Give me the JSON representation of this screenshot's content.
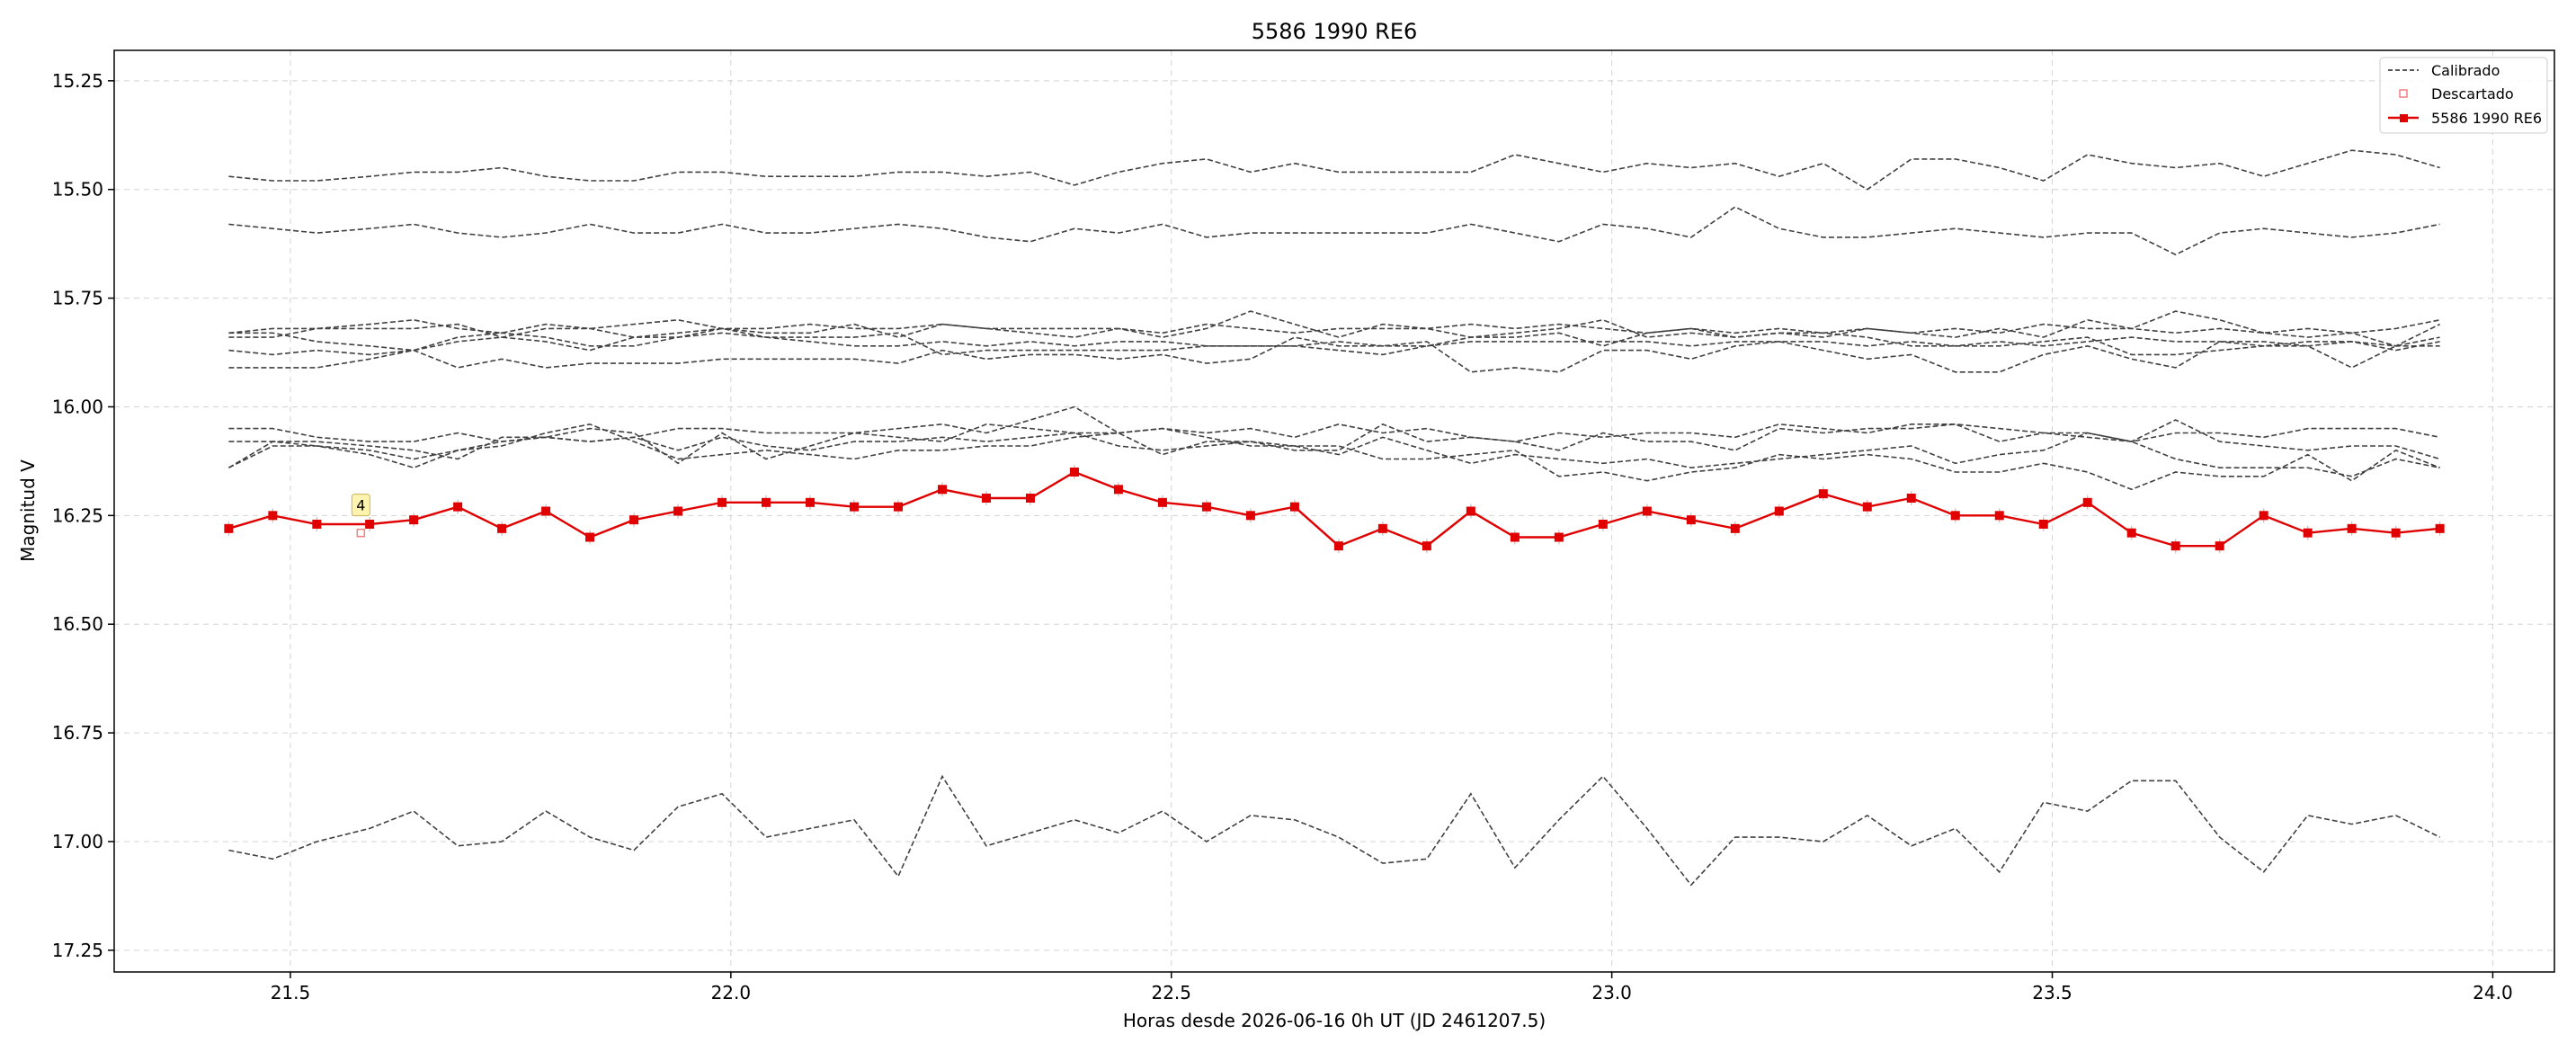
{
  "chart_data": {
    "type": "line",
    "title": "5586 1990 RE6",
    "xlabel": "Horas desde 2026-06-16 0h UT (JD 2461207.5)",
    "ylabel": "Magnitud V",
    "xlim": [
      21.3,
      24.07
    ],
    "ylim": [
      17.3,
      15.18
    ],
    "y_inverted": true,
    "grid": true,
    "legend_position": "top-right",
    "x_ticks": [
      21.5,
      22.0,
      22.5,
      23.0,
      23.5,
      24.0
    ],
    "x_tick_labels": [
      "21.5",
      "22.0",
      "22.5",
      "23.0",
      "23.5",
      "24.0"
    ],
    "y_ticks": [
      15.25,
      15.5,
      15.75,
      16.0,
      16.25,
      16.5,
      16.75,
      17.0,
      17.25
    ],
    "y_tick_labels": [
      "15.25",
      "15.50",
      "15.75",
      "16.00",
      "16.25",
      "16.50",
      "16.75",
      "17.00",
      "17.25"
    ],
    "legend": [
      {
        "label": "Calibrado",
        "style": "dashed-line"
      },
      {
        "label": "Descartado",
        "style": "open-square"
      },
      {
        "label": "5586 1990 RE6",
        "style": "red-line-marker"
      }
    ],
    "x": [
      21.43,
      21.48,
      21.53,
      21.59,
      21.64,
      21.69,
      21.74,
      21.79,
      21.84,
      21.89,
      21.94,
      21.99,
      22.04,
      22.09,
      22.14,
      22.19,
      22.24,
      22.29,
      22.34,
      22.39,
      22.44,
      22.49,
      22.54,
      22.59,
      22.64,
      22.69,
      22.74,
      22.79,
      22.84,
      22.89,
      22.94,
      22.99,
      23.04,
      23.09,
      23.14,
      23.19,
      23.24,
      23.29,
      23.34,
      23.39,
      23.44,
      23.49,
      23.54,
      23.59,
      23.64,
      23.69,
      23.74,
      23.79,
      23.84,
      23.89,
      23.94
    ],
    "comparison_color": "#404040",
    "target_color": "#e00000",
    "series": [
      {
        "role": "comparison",
        "values": [
          15.47,
          15.48,
          15.48,
          15.47,
          15.46,
          15.46,
          15.45,
          15.47,
          15.48,
          15.48,
          15.46,
          15.46,
          15.47,
          15.47,
          15.47,
          15.46,
          15.46,
          15.47,
          15.46,
          15.49,
          15.46,
          15.44,
          15.43,
          15.46,
          15.44,
          15.46,
          15.46,
          15.46,
          15.46,
          15.42,
          15.44,
          15.46,
          15.44,
          15.45,
          15.44,
          15.47,
          15.44,
          15.5,
          15.43,
          15.43,
          15.45,
          15.48,
          15.42,
          15.44,
          15.45,
          15.44,
          15.47,
          15.44,
          15.41,
          15.42,
          15.45
        ]
      },
      {
        "role": "comparison",
        "values": [
          15.58,
          15.59,
          15.6,
          15.59,
          15.58,
          15.6,
          15.61,
          15.6,
          15.58,
          15.6,
          15.6,
          15.58,
          15.6,
          15.6,
          15.59,
          15.58,
          15.59,
          15.61,
          15.62,
          15.59,
          15.6,
          15.58,
          15.61,
          15.6,
          15.6,
          15.6,
          15.6,
          15.6,
          15.58,
          15.6,
          15.62,
          15.58,
          15.59,
          15.61,
          15.54,
          15.59,
          15.61,
          15.61,
          15.6,
          15.59,
          15.6,
          15.61,
          15.6,
          15.6,
          15.65,
          15.6,
          15.59,
          15.6,
          15.61,
          15.6,
          15.58
        ]
      },
      {
        "role": "comparison",
        "values": [
          15.83,
          15.82,
          15.82,
          15.81,
          15.8,
          15.82,
          15.83,
          15.81,
          15.82,
          15.81,
          15.8,
          15.82,
          15.82,
          15.81,
          15.82,
          15.82,
          15.81,
          15.82,
          15.82,
          15.82,
          15.82,
          15.83,
          15.81,
          15.82,
          15.83,
          15.82,
          15.82,
          15.82,
          15.81,
          15.82,
          15.81,
          15.82,
          15.83,
          15.82,
          15.83,
          15.82,
          15.83,
          15.82,
          15.83,
          15.82,
          15.83,
          15.81,
          15.82,
          15.82,
          15.83,
          15.82,
          15.83,
          15.82,
          15.83,
          15.82,
          15.8
        ]
      },
      {
        "role": "comparison",
        "values": [
          15.84,
          15.84,
          15.82,
          15.82,
          15.82,
          15.81,
          15.84,
          15.82,
          15.82,
          15.84,
          15.83,
          15.82,
          15.83,
          15.83,
          15.81,
          15.84,
          15.81,
          15.82,
          15.83,
          15.84,
          15.82,
          15.84,
          15.82,
          15.78,
          15.81,
          15.84,
          15.81,
          15.82,
          15.84,
          15.83,
          15.82,
          15.8,
          15.84,
          15.83,
          15.84,
          15.83,
          15.84,
          15.82,
          15.83,
          15.84,
          15.82,
          15.84,
          15.8,
          15.82,
          15.78,
          15.8,
          15.83,
          15.84,
          15.83,
          15.86,
          15.81
        ]
      },
      {
        "role": "comparison",
        "values": [
          15.87,
          15.88,
          15.87,
          15.88,
          15.87,
          15.85,
          15.84,
          15.85,
          15.87,
          15.84,
          15.84,
          15.83,
          15.84,
          15.85,
          15.86,
          15.86,
          15.85,
          15.86,
          15.85,
          15.86,
          15.85,
          15.85,
          15.86,
          15.86,
          15.86,
          15.85,
          15.86,
          15.86,
          15.85,
          15.85,
          15.85,
          15.85,
          15.85,
          15.86,
          15.85,
          15.85,
          15.85,
          15.86,
          15.85,
          15.86,
          15.85,
          15.86,
          15.85,
          15.84,
          15.85,
          15.85,
          15.86,
          15.85,
          15.85,
          15.86,
          15.86
        ]
      },
      {
        "role": "comparison",
        "values": [
          15.83,
          15.83,
          15.85,
          15.86,
          15.87,
          15.84,
          15.83,
          15.84,
          15.86,
          15.86,
          15.84,
          15.82,
          15.84,
          15.84,
          15.84,
          15.83,
          15.88,
          15.87,
          15.87,
          15.87,
          15.87,
          15.87,
          15.86,
          15.86,
          15.86,
          15.87,
          15.88,
          15.86,
          15.84,
          15.84,
          15.83,
          15.86,
          15.83,
          15.82,
          15.84,
          15.83,
          15.83,
          15.84,
          15.86,
          15.86,
          15.86,
          15.85,
          15.84,
          15.88,
          15.88,
          15.87,
          15.86,
          15.86,
          15.85,
          15.87,
          15.85
        ]
      },
      {
        "role": "comparison",
        "values": [
          15.91,
          15.91,
          15.91,
          15.89,
          15.87,
          15.91,
          15.89,
          15.91,
          15.9,
          15.9,
          15.9,
          15.89,
          15.89,
          15.89,
          15.89,
          15.9,
          15.87,
          15.89,
          15.88,
          15.88,
          15.89,
          15.88,
          15.9,
          15.89,
          15.84,
          15.86,
          15.86,
          15.85,
          15.92,
          15.91,
          15.92,
          15.87,
          15.87,
          15.89,
          15.86,
          15.85,
          15.87,
          15.89,
          15.88,
          15.92,
          15.92,
          15.88,
          15.86,
          15.89,
          15.91,
          15.85,
          15.85,
          15.86,
          15.91,
          15.86,
          15.84
        ]
      },
      {
        "role": "comparison",
        "values": [
          16.05,
          16.05,
          16.07,
          16.08,
          16.08,
          16.06,
          16.08,
          16.07,
          16.08,
          16.07,
          16.05,
          16.05,
          16.06,
          16.06,
          16.06,
          16.07,
          16.08,
          16.04,
          16.05,
          16.06,
          16.06,
          16.05,
          16.06,
          16.05,
          16.07,
          16.04,
          16.06,
          16.05,
          16.07,
          16.08,
          16.06,
          16.07,
          16.06,
          16.06,
          16.07,
          16.04,
          16.05,
          16.06,
          16.04,
          16.04,
          16.05,
          16.06,
          16.07,
          16.08,
          16.06,
          16.06,
          16.07,
          16.05,
          16.05,
          16.05,
          16.07
        ]
      },
      {
        "role": "comparison",
        "values": [
          16.08,
          16.08,
          16.09,
          16.1,
          16.12,
          16.1,
          16.08,
          16.07,
          16.08,
          16.07,
          16.1,
          16.07,
          16.09,
          16.1,
          16.08,
          16.08,
          16.07,
          16.08,
          16.07,
          16.06,
          16.09,
          16.1,
          16.09,
          16.08,
          16.1,
          16.1,
          16.04,
          16.08,
          16.07,
          16.08,
          16.1,
          16.06,
          16.08,
          16.08,
          16.1,
          16.05,
          16.06,
          16.05,
          16.05,
          16.04,
          16.08,
          16.06,
          16.06,
          16.08,
          16.03,
          16.08,
          16.09,
          16.1,
          16.09,
          16.09,
          16.12
        ]
      },
      {
        "role": "comparison",
        "values": [
          16.14,
          16.08,
          16.08,
          16.09,
          16.1,
          16.12,
          16.07,
          16.07,
          16.05,
          16.06,
          16.13,
          16.06,
          16.12,
          16.09,
          16.06,
          16.05,
          16.04,
          16.06,
          16.03,
          16.0,
          16.06,
          16.05,
          16.07,
          16.09,
          16.09,
          16.11,
          16.07,
          16.1,
          16.13,
          16.11,
          16.12,
          16.13,
          16.12,
          16.14,
          16.13,
          16.12,
          16.11,
          16.1,
          16.09,
          16.13,
          16.11,
          16.1,
          16.06,
          16.08,
          16.12,
          16.14,
          16.14,
          16.14,
          16.16,
          16.12,
          16.14
        ]
      },
      {
        "role": "comparison",
        "values": [
          16.14,
          16.09,
          16.09,
          16.11,
          16.14,
          16.1,
          16.09,
          16.06,
          16.04,
          16.08,
          16.12,
          16.11,
          16.1,
          16.11,
          16.12,
          16.1,
          16.1,
          16.09,
          16.09,
          16.07,
          16.06,
          16.11,
          16.08,
          16.08,
          16.09,
          16.09,
          16.12,
          16.12,
          16.11,
          16.1,
          16.16,
          16.15,
          16.17,
          16.15,
          16.14,
          16.11,
          16.12,
          16.11,
          16.12,
          16.15,
          16.15,
          16.13,
          16.15,
          16.19,
          16.15,
          16.16,
          16.16,
          16.11,
          16.17,
          16.1,
          16.14
        ]
      },
      {
        "role": "comparison",
        "values": [
          17.02,
          17.04,
          17.0,
          16.97,
          16.93,
          17.01,
          17.0,
          16.93,
          16.99,
          17.02,
          16.92,
          16.89,
          16.99,
          16.97,
          16.95,
          17.08,
          16.85,
          17.01,
          16.98,
          16.95,
          16.98,
          16.93,
          17.0,
          16.94,
          16.95,
          16.99,
          17.05,
          17.04,
          16.89,
          17.06,
          16.95,
          16.85,
          16.97,
          17.1,
          16.99,
          16.99,
          17.0,
          16.94,
          17.01,
          16.97,
          17.07,
          16.91,
          16.93,
          16.86,
          16.86,
          16.99,
          17.07,
          16.94,
          16.96,
          16.94,
          16.99
        ]
      },
      {
        "role": "target",
        "name": "5586 1990 RE6",
        "values": [
          16.28,
          16.25,
          16.27,
          16.27,
          16.26,
          16.23,
          16.28,
          16.24,
          16.3,
          16.26,
          16.24,
          16.22,
          16.22,
          16.22,
          16.23,
          16.23,
          16.19,
          16.21,
          16.21,
          16.15,
          16.19,
          16.22,
          16.23,
          16.25,
          16.23,
          16.32,
          16.28,
          16.32,
          16.24,
          16.3,
          16.3,
          16.27,
          16.24,
          16.26,
          16.28,
          16.24,
          16.2,
          16.23,
          16.21,
          16.25,
          16.25,
          16.27,
          16.22,
          16.29,
          16.32,
          16.32,
          16.25,
          16.29,
          16.28,
          16.29,
          16.28
        ]
      }
    ],
    "discarded": [
      {
        "x": 21.58,
        "y": 16.29
      }
    ],
    "annotations": [
      {
        "text": "4",
        "x": 21.58,
        "y": 16.23
      }
    ]
  }
}
